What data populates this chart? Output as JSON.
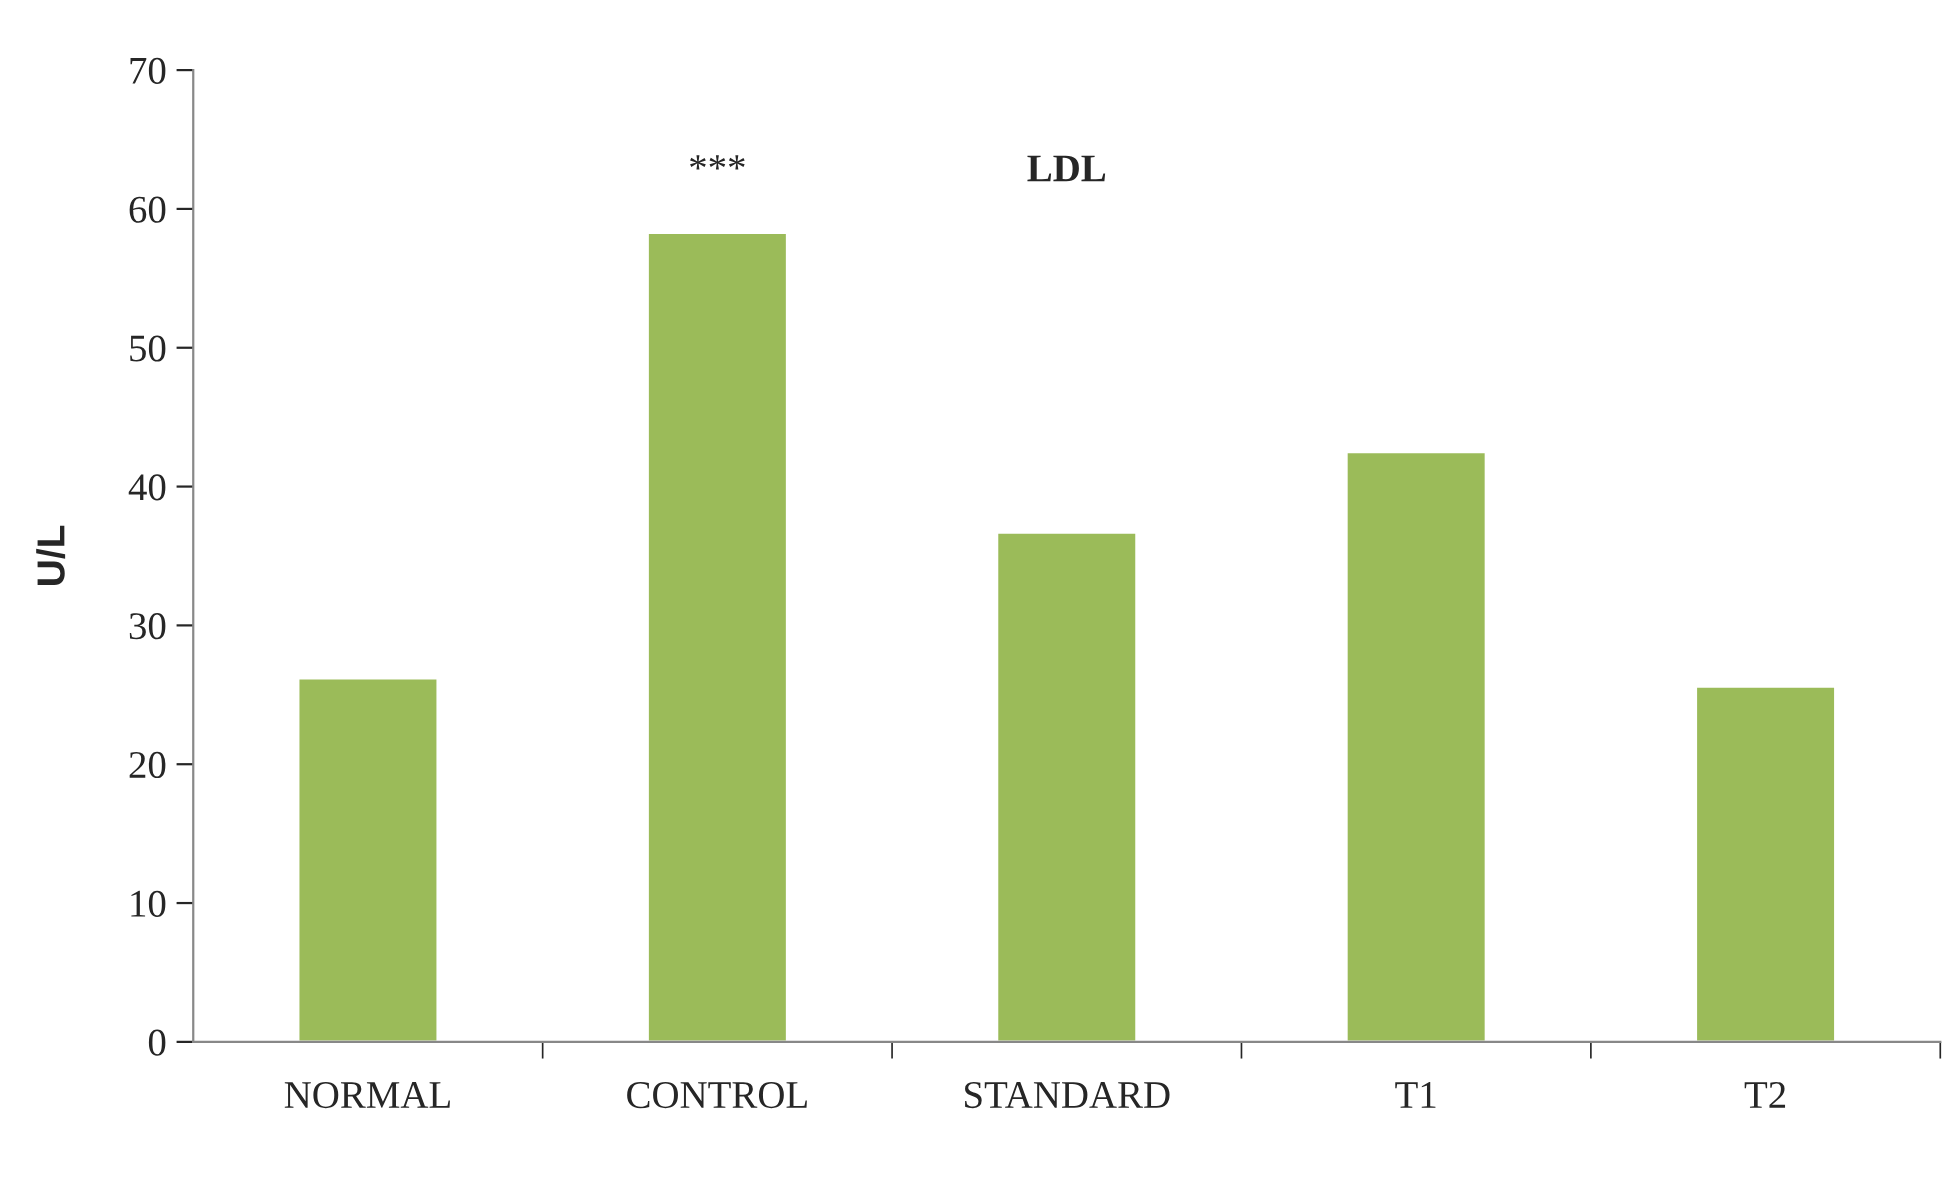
{
  "chart_data": {
    "type": "bar",
    "title": "LDL",
    "ylabel": "U/L",
    "categories": [
      "NORMAL",
      "CONTROL",
      "STANDARD",
      "T1",
      "T2"
    ],
    "values": [
      26.2,
      58.3,
      36.7,
      42.5,
      25.6
    ],
    "color": "#9bbb59",
    "ylim": [
      0,
      70
    ],
    "yticks": [
      0,
      10,
      20,
      30,
      40,
      50,
      60,
      70
    ],
    "grid": false,
    "legend": false,
    "annotations": [
      "***"
    ]
  }
}
